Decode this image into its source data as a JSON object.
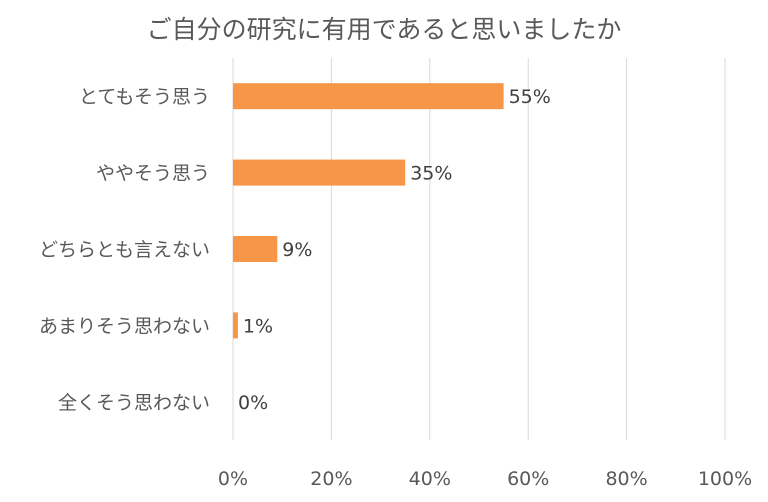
{
  "chart_data": {
    "type": "bar",
    "orientation": "horizontal",
    "title": "ご自分の研究に有用であると思いましたか",
    "categories": [
      "とてもそう思う",
      "ややそう思う",
      "どちらとも言えない",
      "あまりそう思わない",
      "全くそう思わない"
    ],
    "values": [
      55,
      35,
      9,
      1,
      0
    ],
    "value_labels": [
      "55%",
      "35%",
      "9%",
      "1%",
      "0%"
    ],
    "xlim": [
      0,
      100
    ],
    "x_ticks": [
      0,
      20,
      40,
      60,
      80,
      100
    ],
    "x_tick_labels": [
      "0%",
      "20%",
      "40%",
      "60%",
      "80%",
      "100%"
    ],
    "grid": true,
    "legend": "none",
    "bar_color": "#f79646"
  }
}
